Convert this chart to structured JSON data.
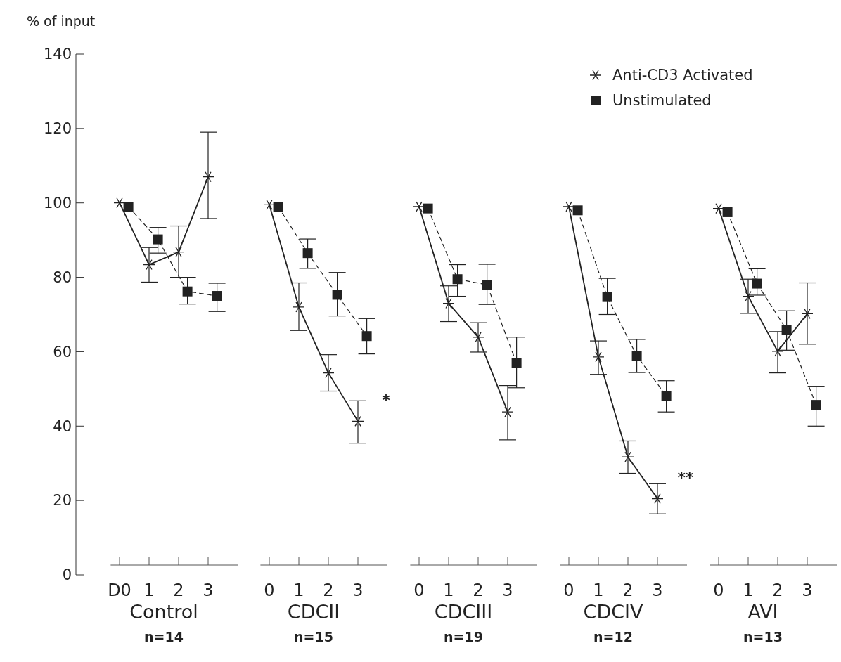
{
  "chart_data": [
    {
      "type": "line",
      "ylabel": "% of input",
      "xlabel": "Control",
      "annotations": [
        "n=14"
      ],
      "x": [
        0,
        1,
        2,
        3
      ],
      "xlim": [
        -0.3,
        4
      ],
      "xticks": [
        {
          "value": 0,
          "label": "D0"
        },
        1,
        2,
        3
      ],
      "ylim": [
        0,
        140
      ],
      "yticks": [
        0,
        20,
        40,
        60,
        80,
        100,
        120,
        140
      ],
      "legend": false,
      "series": [
        {
          "color": "#222222",
          "marker": "cross",
          "line_style": "solid",
          "values": [
            100,
            83.4,
            86.8,
            107
          ],
          "errors": [
            null,
            [
              78.7,
              88
            ],
            [
              80,
              93.8
            ],
            [
              95.8,
              119
            ]
          ]
        },
        {
          "color": "#222222",
          "marker": "square",
          "line_style": "dashed",
          "x": [
            0.3,
            1.3,
            2.3,
            3.3
          ],
          "values": [
            99,
            90.2,
            76.2,
            75
          ],
          "errors": [
            null,
            [
              86.5,
              93.4
            ],
            [
              72.8,
              80
            ],
            [
              70.8,
              78.4
            ]
          ]
        }
      ]
    },
    {
      "type": "line",
      "xlabel": "CDCII",
      "annotations": [
        "n=15",
        "*"
      ],
      "x": [
        0,
        1,
        2,
        3
      ],
      "xlim": [
        -0.3,
        4
      ],
      "xticks": [
        0,
        1,
        2,
        3
      ],
      "ylim": [
        0,
        140
      ],
      "tick_labels": "x",
      "legend": false,
      "series": [
        {
          "color": "#222222",
          "marker": "cross",
          "line_style": "solid",
          "values": [
            99.5,
            72,
            54.3,
            41.3
          ],
          "errors": [
            null,
            [
              65.7,
              78.5
            ],
            [
              49.4,
              59.2
            ],
            [
              35.4,
              46.8
            ]
          ]
        },
        {
          "color": "#222222",
          "marker": "square",
          "line_style": "dashed",
          "x": [
            0.3,
            1.3,
            2.3,
            3.3
          ],
          "values": [
            99,
            86.5,
            75.3,
            64.2
          ],
          "errors": [
            null,
            [
              82.4,
              90.3
            ],
            [
              69.6,
              81.3
            ],
            [
              59.4,
              68.9
            ]
          ]
        }
      ]
    },
    {
      "type": "line",
      "xlabel": "CDCIII",
      "annotations": [
        "n=19"
      ],
      "x": [
        0,
        1,
        2,
        3
      ],
      "xlim": [
        -0.3,
        4
      ],
      "xticks": [
        0,
        1,
        2,
        3
      ],
      "ylim": [
        0,
        140
      ],
      "tick_labels": "x",
      "legend": false,
      "series": [
        {
          "color": "#222222",
          "marker": "cross",
          "line_style": "solid",
          "values": [
            99,
            73,
            63.9,
            43.8
          ],
          "errors": [
            null,
            [
              68.1,
              77.7
            ],
            [
              59.9,
              67.8
            ],
            [
              36.3,
              50.9
            ]
          ]
        },
        {
          "color": "#222222",
          "marker": "square",
          "line_style": "dashed",
          "x": [
            0.3,
            1.3,
            2.3,
            3.3
          ],
          "values": [
            98.5,
            79.5,
            78,
            56.9
          ],
          "errors": [
            null,
            [
              74.9,
              83.4
            ],
            [
              72.7,
              83.5
            ],
            [
              50.3,
              63.9
            ]
          ]
        }
      ]
    },
    {
      "type": "line",
      "xlabel": "CDCIV",
      "annotations": [
        "n=12",
        "**"
      ],
      "x": [
        0,
        1,
        2,
        3
      ],
      "xlim": [
        -0.3,
        4
      ],
      "xticks": [
        0,
        1,
        2,
        3
      ],
      "ylim": [
        0,
        140
      ],
      "tick_labels": "x",
      "legend": "top right",
      "series": [
        {
          "name": "Anti-CD3 Activated",
          "color": "#222222",
          "marker": "cross",
          "line_style": "solid",
          "values": [
            99,
            58.6,
            31.7,
            20.5
          ],
          "errors": [
            null,
            [
              53.9,
              62.9
            ],
            [
              27.3,
              36
            ],
            [
              16.4,
              24.5
            ]
          ]
        },
        {
          "name": "Unstimulated",
          "color": "#222222",
          "marker": "square",
          "line_style": "dashed",
          "x": [
            0.3,
            1.3,
            2.3,
            3.3
          ],
          "values": [
            98,
            74.7,
            58.9,
            48.1
          ],
          "errors": [
            null,
            [
              70,
              79.7
            ],
            [
              54.4,
              63.3
            ],
            [
              43.8,
              52.2
            ]
          ]
        }
      ]
    },
    {
      "type": "line",
      "xlabel": "AVI",
      "annotations": [
        "n=13"
      ],
      "x": [
        0,
        1,
        2,
        3
      ],
      "xlim": [
        -0.3,
        4
      ],
      "xticks": [
        0,
        1,
        2,
        3
      ],
      "ylim": [
        0,
        140
      ],
      "tick_labels": "x",
      "legend": false,
      "series": [
        {
          "color": "#222222",
          "marker": "cross",
          "line_style": "solid",
          "values": [
            98.5,
            74.9,
            60.1,
            70.2
          ],
          "errors": [
            null,
            [
              70.3,
              79.5
            ],
            [
              54.3,
              65.4
            ],
            [
              62,
              78.5
            ]
          ]
        },
        {
          "color": "#222222",
          "marker": "square",
          "line_style": "dashed",
          "x": [
            0.3,
            1.3,
            2.3,
            3.3
          ],
          "values": [
            97.5,
            78.3,
            65.9,
            45.7
          ],
          "errors": [
            null,
            [
              75.2,
              82.3
            ],
            [
              60.4,
              71
            ],
            [
              40,
              50.7
            ]
          ]
        }
      ]
    }
  ]
}
